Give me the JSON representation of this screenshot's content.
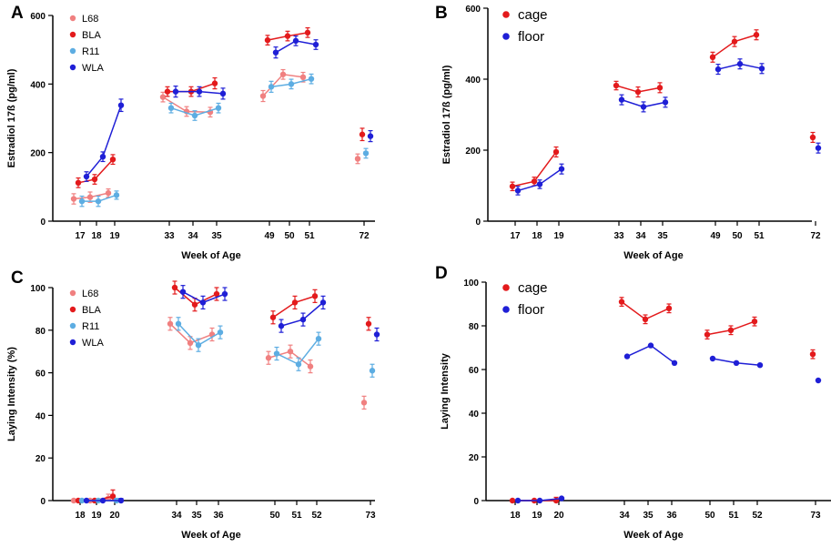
{
  "colors": {
    "L68": "#f08080",
    "BLA": "#e31a1c",
    "R11": "#5dade2",
    "WLA": "#1f1fd6",
    "cage": "#e31a1c",
    "floor": "#1f1fd6"
  },
  "chart_data": [
    {
      "panel": "A",
      "type": "line",
      "ylabel": "Estradiol 17ß (pg/ml)",
      "xlabel": "Week of Age",
      "ylim": [
        0,
        600
      ],
      "yticks": [
        0,
        200,
        400,
        600
      ],
      "categories": [
        "17",
        "18",
        "19",
        "33",
        "34",
        "35",
        "49",
        "50",
        "51",
        "72"
      ],
      "legend_position": "top-left",
      "series": [
        {
          "name": "L68",
          "values": [
            65,
            70,
            82,
            362,
            320,
            318,
            365,
            428,
            420,
            182
          ],
          "errors": [
            15,
            15,
            12,
            14,
            14,
            14,
            16,
            14,
            14,
            14
          ]
        },
        {
          "name": "BLA",
          "values": [
            112,
            122,
            180,
            378,
            378,
            402,
            528,
            540,
            550,
            253
          ],
          "errors": [
            14,
            14,
            14,
            14,
            14,
            16,
            14,
            14,
            14,
            18
          ]
        },
        {
          "name": "R11",
          "values": [
            58,
            58,
            76,
            330,
            308,
            330,
            392,
            400,
            415,
            198
          ],
          "errors": [
            15,
            15,
            12,
            14,
            14,
            14,
            16,
            14,
            14,
            14
          ]
        },
        {
          "name": "WLA",
          "values": [
            130,
            188,
            338,
            378,
            378,
            372,
            492,
            526,
            515,
            248
          ],
          "errors": [
            14,
            14,
            18,
            16,
            14,
            16,
            16,
            14,
            14,
            16
          ]
        }
      ]
    },
    {
      "panel": "B",
      "type": "line",
      "ylabel": "Estradiol 17ß (pg/ml)",
      "xlabel": "Week of Age",
      "ylim": [
        0,
        600
      ],
      "yticks": [
        0,
        200,
        400,
        600
      ],
      "categories": [
        "17",
        "18",
        "19",
        "33",
        "34",
        "35",
        "49",
        "50",
        "51",
        "72"
      ],
      "legend_position": "top-left",
      "series": [
        {
          "name": "cage",
          "values": [
            98,
            112,
            195,
            382,
            364,
            376,
            462,
            506,
            525,
            236
          ],
          "errors": [
            12,
            12,
            14,
            12,
            14,
            14,
            14,
            14,
            14,
            14
          ]
        },
        {
          "name": "floor",
          "values": [
            86,
            104,
            147,
            342,
            322,
            335,
            428,
            443,
            430,
            206
          ],
          "errors": [
            12,
            12,
            14,
            14,
            14,
            14,
            14,
            14,
            14,
            14
          ]
        }
      ]
    },
    {
      "panel": "C",
      "type": "line",
      "ylabel": "Laying Intensity (%)",
      "xlabel": "Week of Age",
      "ylim": [
        0,
        100
      ],
      "yticks": [
        0,
        20,
        40,
        60,
        80,
        100
      ],
      "categories": [
        "18",
        "19",
        "20",
        "34",
        "35",
        "36",
        "50",
        "51",
        "52",
        "73"
      ],
      "legend_position": "top-left",
      "series": [
        {
          "name": "L68",
          "values": [
            0,
            0,
            1,
            83,
            74,
            78,
            67,
            70,
            63,
            46
          ],
          "errors": [
            0.5,
            0.5,
            2,
            3,
            3,
            3,
            3,
            3,
            3,
            3
          ]
        },
        {
          "name": "BLA",
          "values": [
            0,
            0,
            2,
            100,
            92,
            97,
            86,
            93,
            96,
            83
          ],
          "errors": [
            0.5,
            0.5,
            3,
            3,
            3,
            3,
            3,
            3,
            3,
            3
          ]
        },
        {
          "name": "R11",
          "values": [
            0,
            0,
            0,
            83,
            73,
            79,
            69,
            64,
            76,
            61
          ],
          "errors": [
            0.5,
            0.5,
            1,
            3,
            3,
            3,
            3,
            3,
            3,
            3
          ]
        },
        {
          "name": "WLA",
          "values": [
            0,
            0,
            0,
            98,
            93,
            97,
            82,
            85,
            93,
            78
          ],
          "errors": [
            0.5,
            0.5,
            1,
            3,
            3,
            3,
            3,
            3,
            3,
            3
          ]
        }
      ]
    },
    {
      "panel": "D",
      "type": "line",
      "ylabel": "Laying Intensity",
      "xlabel": "Week of Age",
      "ylim": [
        0,
        100
      ],
      "yticks": [
        0,
        20,
        40,
        60,
        80,
        100
      ],
      "categories": [
        "18",
        "19",
        "20",
        "34",
        "35",
        "36",
        "50",
        "51",
        "52",
        "73"
      ],
      "legend_position": "top-left",
      "series": [
        {
          "name": "cage",
          "values": [
            0,
            0,
            0,
            91,
            83,
            88,
            76,
            78,
            82,
            67
          ],
          "errors": [
            0.5,
            0.5,
            1.5,
            2,
            2,
            2,
            2,
            2,
            2,
            2
          ]
        },
        {
          "name": "floor",
          "values": [
            0,
            0,
            1,
            66,
            71,
            63,
            65,
            63,
            62,
            55
          ],
          "errors": [
            0,
            0,
            0,
            0,
            0,
            0,
            0,
            0,
            0,
            0
          ]
        }
      ]
    }
  ]
}
